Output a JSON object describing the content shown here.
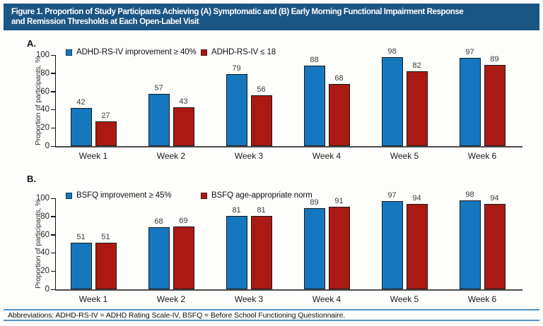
{
  "title": {
    "lines": [
      "Figure 1. Proportion of Study Participants Achieving (A) Symptomatic and (B) Early Morning Functional Impairment Response",
      "and Remission Thresholds at Each Open-Label Visit"
    ]
  },
  "colors": {
    "title_bar": "#1b5584",
    "series_blue": "#1577be",
    "series_red": "#aa1a12",
    "rule_blue": "#4e93c7"
  },
  "chart_data": [
    {
      "type": "bar",
      "panel_label": "A.",
      "title": "",
      "categories": [
        "Week 1",
        "Week 2",
        "Week 3",
        "Week 4",
        "Week 5",
        "Week 6"
      ],
      "series": [
        {
          "name": "ADHD-RS-IV improvement ≥ 40%",
          "color": "#1577be",
          "values": [
            42,
            57,
            79,
            88,
            98,
            97
          ]
        },
        {
          "name": "ADHD-RS-IV ≤ 18",
          "color": "#aa1a12",
          "values": [
            27,
            43,
            56,
            68,
            82,
            89
          ]
        }
      ],
      "xlabel": "",
      "ylabel": "Proportion of participants, %",
      "ylim": [
        0,
        100
      ],
      "yticks": [
        0,
        20,
        40,
        60,
        80,
        100
      ],
      "grid": false,
      "legend_position": "top-inside",
      "bar_value_labels": true
    },
    {
      "type": "bar",
      "panel_label": "B.",
      "title": "",
      "categories": [
        "Week 1",
        "Week 2",
        "Week 3",
        "Week 4",
        "Week 5",
        "Week 6"
      ],
      "series": [
        {
          "name": "BSFQ improvement ≥ 45%",
          "color": "#1577be",
          "values": [
            51,
            68,
            81,
            89,
            97,
            98
          ]
        },
        {
          "name": "BSFQ age-appropriate norm",
          "color": "#aa1a12",
          "values": [
            51,
            69,
            81,
            91,
            94,
            94
          ]
        }
      ],
      "xlabel": "",
      "ylabel": "Proportion of participants, %",
      "ylim": [
        0,
        100
      ],
      "yticks": [
        0,
        20,
        40,
        60,
        80,
        100
      ],
      "grid": false,
      "legend_position": "top-inside",
      "bar_value_labels": true
    }
  ],
  "footer": {
    "abbreviations": "Abbreviations: ADHD-RS-IV = ADHD Rating Scale-IV, BSFQ = Before School Functioning Questionnaire."
  }
}
